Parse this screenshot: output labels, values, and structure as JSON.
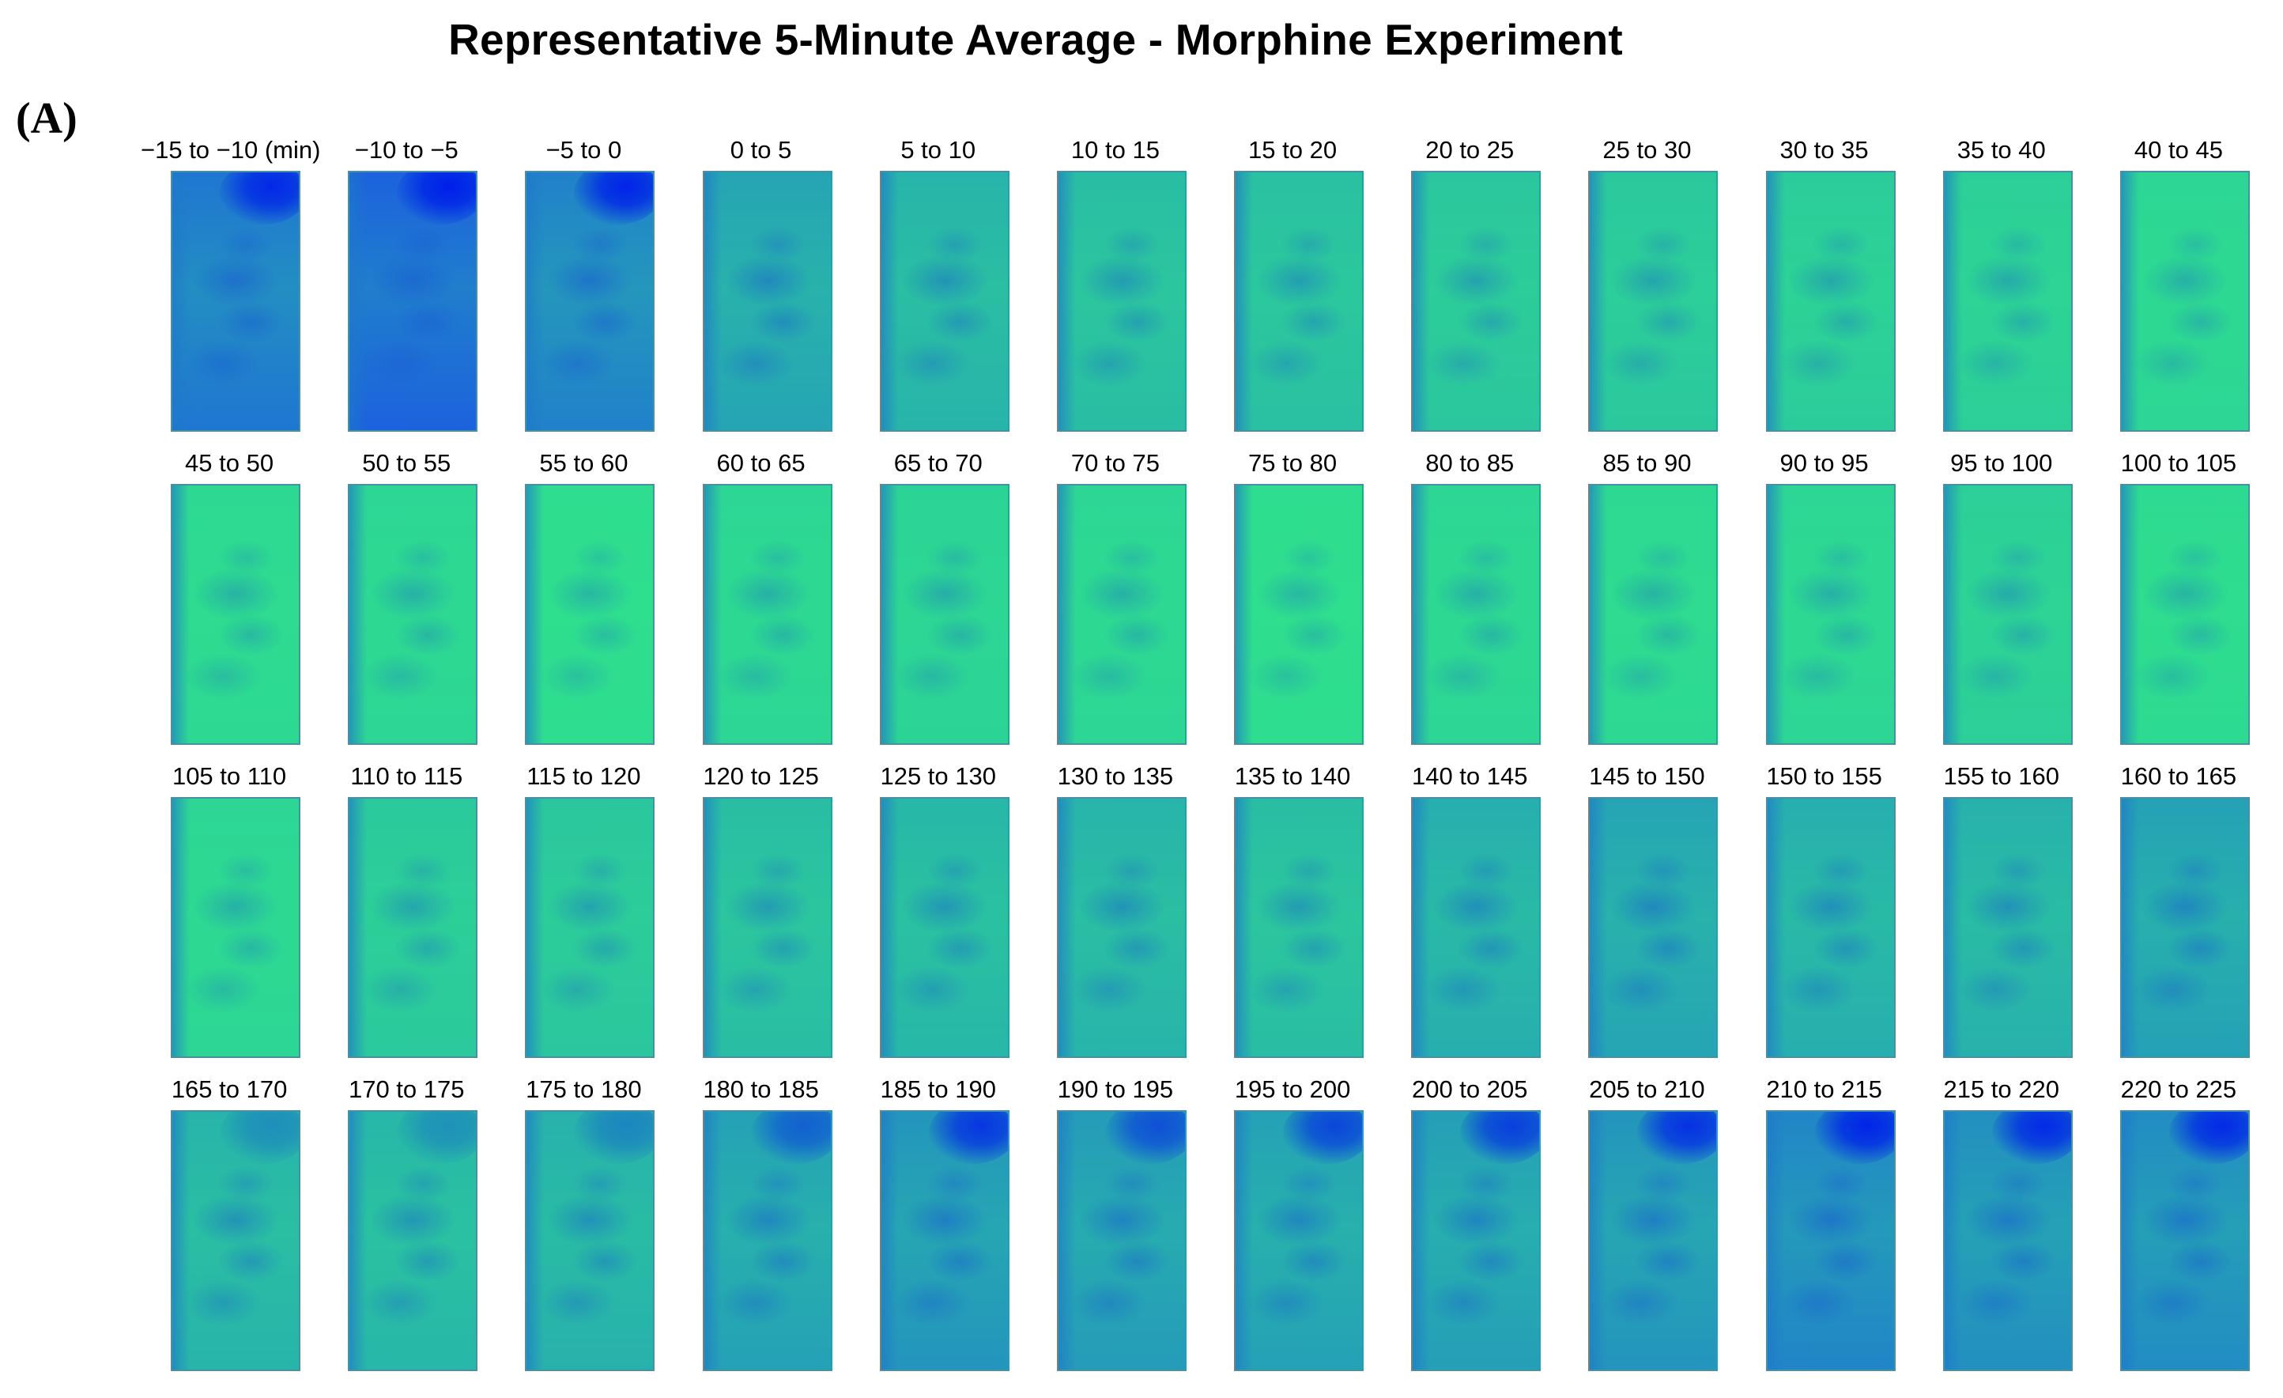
{
  "figure": {
    "title": "Representative 5-Minute Average - Morphine Experiment",
    "panel_label": "(A)"
  },
  "colors": {
    "background": "#ffffff",
    "base": "#2fe58a",
    "cool": "#1c5fe0",
    "hot": "#0020eb",
    "border": "#4b8fa3"
  },
  "panels": [
    {
      "label": "−15 to −10 (min)",
      "intensity": 0.72,
      "hotspot": 0.9
    },
    {
      "label": "−10 to −5",
      "intensity": 0.85,
      "hotspot": 1.0
    },
    {
      "label": "−5 to 0",
      "intensity": 0.65,
      "hotspot": 0.95
    },
    {
      "label": "0 to 5",
      "intensity": 0.42,
      "hotspot": 0
    },
    {
      "label": "5 to 10",
      "intensity": 0.32,
      "hotspot": 0
    },
    {
      "label": "10 to 15",
      "intensity": 0.26,
      "hotspot": 0
    },
    {
      "label": "15 to 20",
      "intensity": 0.24,
      "hotspot": 0
    },
    {
      "label": "20 to 25",
      "intensity": 0.2,
      "hotspot": 0
    },
    {
      "label": "25 to 30",
      "intensity": 0.19,
      "hotspot": 0
    },
    {
      "label": "30 to 35",
      "intensity": 0.16,
      "hotspot": 0
    },
    {
      "label": "35 to 40",
      "intensity": 0.14,
      "hotspot": 0
    },
    {
      "label": "40 to 45",
      "intensity": 0.1,
      "hotspot": 0
    },
    {
      "label": "45 to 50",
      "intensity": 0.08,
      "hotspot": 0
    },
    {
      "label": "50 to 55",
      "intensity": 0.1,
      "hotspot": 0
    },
    {
      "label": "55 to 60",
      "intensity": 0.05,
      "hotspot": 0
    },
    {
      "label": "60 to 65",
      "intensity": 0.1,
      "hotspot": 0
    },
    {
      "label": "65 to 70",
      "intensity": 0.12,
      "hotspot": 0
    },
    {
      "label": "70 to 75",
      "intensity": 0.1,
      "hotspot": 0
    },
    {
      "label": "75 to 80",
      "intensity": 0.05,
      "hotspot": 0
    },
    {
      "label": "80 to 85",
      "intensity": 0.1,
      "hotspot": 0
    },
    {
      "label": "85 to 90",
      "intensity": 0.08,
      "hotspot": 0
    },
    {
      "label": "90 to 95",
      "intensity": 0.1,
      "hotspot": 0
    },
    {
      "label": "95 to 100",
      "intensity": 0.14,
      "hotspot": 0
    },
    {
      "label": "100 to 105",
      "intensity": 0.07,
      "hotspot": 0
    },
    {
      "label": "105 to 110",
      "intensity": 0.1,
      "hotspot": 0
    },
    {
      "label": "110 to 115",
      "intensity": 0.18,
      "hotspot": 0
    },
    {
      "label": "115 to 120",
      "intensity": 0.2,
      "hotspot": 0
    },
    {
      "label": "120 to 125",
      "intensity": 0.26,
      "hotspot": 0
    },
    {
      "label": "125 to 130",
      "intensity": 0.3,
      "hotspot": 0
    },
    {
      "label": "130 to 135",
      "intensity": 0.32,
      "hotspot": 0
    },
    {
      "label": "135 to 140",
      "intensity": 0.26,
      "hotspot": 0
    },
    {
      "label": "140 to 145",
      "intensity": 0.36,
      "hotspot": 0
    },
    {
      "label": "145 to 150",
      "intensity": 0.42,
      "hotspot": 0
    },
    {
      "label": "150 to 155",
      "intensity": 0.36,
      "hotspot": 0
    },
    {
      "label": "155 to 160",
      "intensity": 0.34,
      "hotspot": 0
    },
    {
      "label": "160 to 165",
      "intensity": 0.44,
      "hotspot": 0
    },
    {
      "label": "165 to 170",
      "intensity": 0.32,
      "hotspot": 0.25
    },
    {
      "label": "170 to 175",
      "intensity": 0.3,
      "hotspot": 0.25
    },
    {
      "label": "175 to 180",
      "intensity": 0.34,
      "hotspot": 0.3
    },
    {
      "label": "180 to 185",
      "intensity": 0.44,
      "hotspot": 0.5
    },
    {
      "label": "185 to 190",
      "intensity": 0.52,
      "hotspot": 0.8
    },
    {
      "label": "190 to 195",
      "intensity": 0.48,
      "hotspot": 0.6
    },
    {
      "label": "195 to 200",
      "intensity": 0.44,
      "hotspot": 0.7
    },
    {
      "label": "200 to 205",
      "intensity": 0.46,
      "hotspot": 0.75
    },
    {
      "label": "205 to 210",
      "intensity": 0.52,
      "hotspot": 0.85
    },
    {
      "label": "210 to 215",
      "intensity": 0.62,
      "hotspot": 0.95
    },
    {
      "label": "215 to 220",
      "intensity": 0.56,
      "hotspot": 0.9
    },
    {
      "label": "220 to 225",
      "intensity": 0.58,
      "hotspot": 0.9
    }
  ]
}
